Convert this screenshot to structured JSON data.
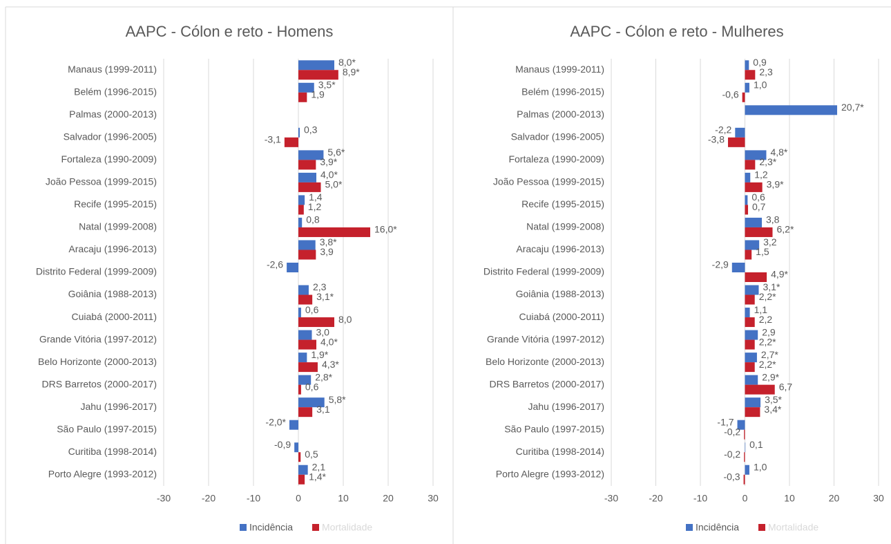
{
  "chart_data": [
    {
      "type": "bar",
      "orientation": "horizontal",
      "title": "AAPC - Cólon e reto - Homens",
      "categories": [
        "Manaus (1999-2011)",
        "Belém (1996-2015)",
        "Palmas (2000-2013)",
        "Salvador (1996-2005)",
        "Fortaleza (1990-2009)",
        "João Pessoa (1999-2015)",
        "Recife (1995-2015)",
        "Natal (1999-2008)",
        "Aracaju (1996-2013)",
        "Distrito Federal (1999-2009)",
        "Goiânia (1988-2013)",
        "Cuiabá (2000-2011)",
        "Grande Vitória (1997-2012)",
        "Belo Horizonte (2000-2013)",
        "DRS Barretos (2000-2017)",
        "Jahu (1996-2017)",
        "São Paulo (1997-2015)",
        "Curitiba (1998-2014)",
        "Porto Alegre (1993-2012)"
      ],
      "series": [
        {
          "name": "Incidência",
          "color": "#4472c4",
          "values": [
            8.0,
            3.5,
            null,
            0.3,
            5.6,
            4.0,
            1.4,
            0.8,
            3.8,
            -2.6,
            2.3,
            0.6,
            3.0,
            1.9,
            2.8,
            5.8,
            -2.0,
            -0.9,
            2.1
          ],
          "value_labels": [
            "8,0*",
            "3,5*",
            null,
            "0,3",
            "5,6*",
            "4,0*",
            "1,4",
            "0,8",
            "3,8*",
            "-2,6",
            "2,3",
            "0,6",
            "3,0",
            "1,9*",
            "2,8*",
            "5,8*",
            "-2,0*",
            "-0,9",
            "2,1"
          ]
        },
        {
          "name": "Mortalidade",
          "color": "#c5212c",
          "values": [
            8.9,
            1.9,
            null,
            -3.1,
            3.9,
            5.0,
            1.2,
            16.0,
            3.9,
            null,
            3.1,
            8.0,
            4.0,
            4.3,
            0.6,
            3.1,
            null,
            0.5,
            1.4
          ],
          "value_labels": [
            "8,9*",
            "1,9",
            null,
            "-3,1",
            "3,9*",
            "5,0*",
            "1,2",
            "16,0*",
            "3,9",
            null,
            "3,1*",
            "8,0",
            "4,0*",
            "4,3*",
            "0,6",
            "3,1",
            null,
            "0,5",
            "1,4*"
          ]
        }
      ],
      "xlim": [
        -30,
        30
      ],
      "xticks": [
        -30,
        -20,
        -10,
        0,
        10,
        20,
        30
      ],
      "grid": true,
      "legend": "bottom"
    },
    {
      "type": "bar",
      "orientation": "horizontal",
      "title": "AAPC - Cólon e reto - Mulheres",
      "categories": [
        "Manaus (1999-2011)",
        "Belém (1996-2015)",
        "Palmas (2000-2013)",
        "Salvador (1996-2005)",
        "Fortaleza (1990-2009)",
        "João Pessoa (1999-2015)",
        "Recife (1995-2015)",
        "Natal (1999-2008)",
        "Aracaju (1996-2013)",
        "Distrito Federal (1999-2009)",
        "Goiânia (1988-2013)",
        "Cuiabá (2000-2011)",
        "Grande Vitória (1997-2012)",
        "Belo Horizonte (2000-2013)",
        "DRS Barretos (2000-2017)",
        "Jahu (1996-2017)",
        "São Paulo (1997-2015)",
        "Curitiba (1998-2014)",
        "Porto Alegre (1993-2012)"
      ],
      "series": [
        {
          "name": "Incidência",
          "color": "#4472c4",
          "values": [
            0.9,
            1.0,
            20.7,
            -2.2,
            4.8,
            1.2,
            0.6,
            3.8,
            3.2,
            -2.9,
            3.1,
            1.1,
            2.9,
            2.7,
            2.9,
            3.5,
            -1.7,
            0.1,
            1.0
          ],
          "value_labels": [
            "0,9",
            "1,0",
            "20,7*",
            "-2,2",
            "4,8*",
            "1,2",
            "0,6",
            "3,8",
            "3,2",
            "-2,9",
            "3,1*",
            "1,1",
            "2,9",
            "2,7*",
            "2,9*",
            "3,5*",
            "-1,7",
            "0,1",
            "1,0"
          ]
        },
        {
          "name": "Mortalidade",
          "color": "#c5212c",
          "values": [
            2.3,
            -0.6,
            null,
            -3.8,
            2.3,
            3.9,
            0.7,
            6.2,
            1.5,
            4.9,
            2.2,
            2.2,
            2.2,
            2.2,
            6.7,
            3.4,
            -0.2,
            -0.2,
            -0.3
          ],
          "value_labels": [
            "2,3",
            "-0,6",
            null,
            "-3,8",
            "2,3*",
            "3,9*",
            "0,7",
            "6,2*",
            "1,5",
            "4,9*",
            "2,2*",
            "2,2",
            "2,2*",
            "2,2*",
            "6,7",
            "3,4*",
            "-0,2",
            "-0,2",
            "-0,3"
          ]
        }
      ],
      "xlim": [
        -30,
        30
      ],
      "xticks": [
        -30,
        -20,
        -10,
        0,
        10,
        20,
        30
      ],
      "grid": true,
      "legend": "bottom"
    }
  ]
}
